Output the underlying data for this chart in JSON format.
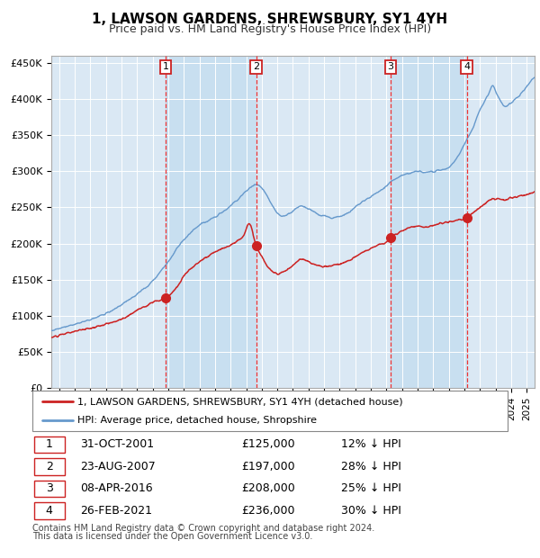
{
  "title": "1, LAWSON GARDENS, SHREWSBURY, SY1 4YH",
  "subtitle": "Price paid vs. HM Land Registry's House Price Index (HPI)",
  "ylabel_ticks": [
    "£0",
    "£50K",
    "£100K",
    "£150K",
    "£200K",
    "£250K",
    "£300K",
    "£350K",
    "£400K",
    "£450K"
  ],
  "ytick_vals": [
    0,
    50000,
    100000,
    150000,
    200000,
    250000,
    300000,
    350000,
    400000,
    450000
  ],
  "ylim": [
    0,
    460000
  ],
  "xlim_start": 1994.5,
  "xlim_end": 2025.5,
  "bg_color": "#dae8f4",
  "grid_color": "#ffffff",
  "hpi_line_color": "#6699cc",
  "price_line_color": "#cc2222",
  "sale_marker_color": "#cc2222",
  "dashed_line_color": "#ee3333",
  "transactions": [
    {
      "num": 1,
      "year": 2001.83,
      "price": 125000
    },
    {
      "num": 2,
      "year": 2007.64,
      "price": 197000
    },
    {
      "num": 3,
      "year": 2016.27,
      "price": 208000
    },
    {
      "num": 4,
      "year": 2021.16,
      "price": 236000
    }
  ],
  "legend_line1": "1, LAWSON GARDENS, SHREWSBURY, SY1 4YH (detached house)",
  "legend_line2": "HPI: Average price, detached house, Shropshire",
  "footnote1": "Contains HM Land Registry data © Crown copyright and database right 2024.",
  "footnote2": "This data is licensed under the Open Government Licence v3.0.",
  "table_rows": [
    {
      "num": 1,
      "date": "31-OCT-2001",
      "price": "£125,000",
      "pct": "12% ↓ HPI"
    },
    {
      "num": 2,
      "date": "23-AUG-2007",
      "price": "£197,000",
      "pct": "28% ↓ HPI"
    },
    {
      "num": 3,
      "date": "08-APR-2016",
      "price": "£208,000",
      "pct": "25% ↓ HPI"
    },
    {
      "num": 4,
      "date": "26-FEB-2021",
      "price": "£236,000",
      "pct": "30% ↓ HPI"
    }
  ]
}
